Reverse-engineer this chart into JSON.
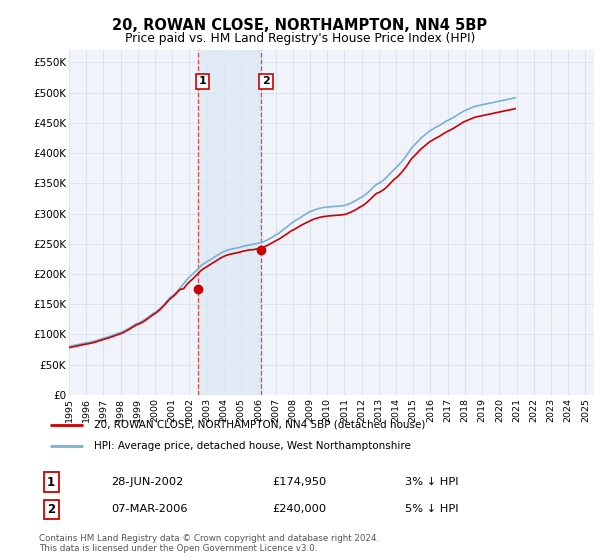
{
  "title": "20, ROWAN CLOSE, NORTHAMPTON, NN4 5BP",
  "subtitle": "Price paid vs. HM Land Registry's House Price Index (HPI)",
  "ylabel_ticks": [
    "£0",
    "£50K",
    "£100K",
    "£150K",
    "£200K",
    "£250K",
    "£300K",
    "£350K",
    "£400K",
    "£450K",
    "£500K",
    "£550K"
  ],
  "ytick_values": [
    0,
    50000,
    100000,
    150000,
    200000,
    250000,
    300000,
    350000,
    400000,
    450000,
    500000,
    550000
  ],
  "ylim": [
    0,
    570000
  ],
  "xlim_start": 1995.0,
  "xlim_end": 2025.5,
  "bg_color": "#ffffff",
  "plot_bg": "#f0f4fa",
  "grid_color": "#d8e0ec",
  "red_color": "#cc0000",
  "blue_color": "#7ab0d4",
  "transaction1_x": 2002.5,
  "transaction1_y": 174950,
  "transaction2_x": 2006.17,
  "transaction2_y": 240000,
  "shade_color": "#dce8f5",
  "shade_alpha": 0.7,
  "legend_line1": "20, ROWAN CLOSE, NORTHAMPTON, NN4 5BP (detached house)",
  "legend_line2": "HPI: Average price, detached house, West Northamptonshire",
  "table_entries": [
    {
      "num": "1",
      "date": "28-JUN-2002",
      "price": "£174,950",
      "hpi": "3% ↓ HPI"
    },
    {
      "num": "2",
      "date": "07-MAR-2006",
      "price": "£240,000",
      "hpi": "5% ↓ HPI"
    }
  ],
  "footer": "Contains HM Land Registry data © Crown copyright and database right 2024.\nThis data is licensed under the Open Government Licence v3.0.",
  "hpi_monthly": {
    "start_year": 1995,
    "start_month": 1,
    "values": [
      80000,
      80500,
      81000,
      81500,
      82000,
      82500,
      83000,
      83500,
      84000,
      84500,
      85000,
      85500,
      86000,
      86200,
      86800,
      87200,
      87800,
      88400,
      89000,
      89700,
      90400,
      91200,
      92100,
      92800,
      93500,
      94100,
      94800,
      95600,
      96400,
      97200,
      98100,
      99000,
      99900,
      100700,
      101500,
      102200,
      103000,
      104000,
      105200,
      106500,
      107800,
      109000,
      110500,
      112000,
      113500,
      115000,
      116500,
      117800,
      118500,
      119500,
      120500,
      121800,
      123200,
      124800,
      126500,
      128200,
      130000,
      131800,
      133500,
      135200,
      136500,
      138200,
      140000,
      142000,
      144200,
      146500,
      149000,
      151800,
      154500,
      157200,
      159800,
      162000,
      163500,
      165500,
      167800,
      170200,
      172800,
      175500,
      178200,
      181000,
      184000,
      187000,
      190000,
      193000,
      195000,
      197000,
      199200,
      201500,
      203800,
      206200,
      208800,
      211200,
      213500,
      215500,
      217000,
      218500,
      220000,
      221500,
      223000,
      224500,
      226000,
      227500,
      229000,
      230500,
      232000,
      233500,
      234800,
      236000,
      237200,
      238200,
      239000,
      239800,
      240500,
      241000,
      241500,
      242000,
      242500,
      243000,
      243500,
      244000,
      244800,
      245500,
      246000,
      246500,
      247000,
      247500,
      248000,
      248500,
      249000,
      249500,
      250000,
      250500,
      251000,
      251500,
      252000,
      252800,
      253800,
      254800,
      256000,
      257200,
      258500,
      259800,
      261200,
      262800,
      264000,
      265500,
      267000,
      268800,
      270500,
      272200,
      274000,
      276000,
      278000,
      280000,
      282000,
      284000,
      285500,
      287000,
      288500,
      290000,
      291500,
      293000,
      294500,
      296000,
      297500,
      299000,
      300500,
      302000,
      303000,
      304000,
      305000,
      306000,
      306800,
      307500,
      308200,
      308800,
      309300,
      309800,
      310200,
      310500,
      310800,
      311000,
      311200,
      311400,
      311600,
      311800,
      312000,
      312200,
      312400,
      312600,
      312800,
      313000,
      313500,
      314000,
      314800,
      315800,
      316800,
      317800,
      319000,
      320200,
      321500,
      323000,
      324500,
      326000,
      327000,
      328500,
      330200,
      332000,
      334000,
      336200,
      338500,
      340800,
      343200,
      345500,
      347500,
      349000,
      350000,
      351500,
      353000,
      354800,
      356800,
      359000,
      361500,
      364000,
      366500,
      369000,
      371500,
      374000,
      376000,
      378500,
      381000,
      383500,
      386000,
      389000,
      392000,
      395000,
      398500,
      402000,
      405500,
      409000,
      411500,
      414000,
      416500,
      419000,
      421500,
      424000,
      426000,
      428000,
      430000,
      432000,
      434000,
      436000,
      437500,
      439000,
      440500,
      441800,
      443000,
      444200,
      445500,
      447000,
      448500,
      450000,
      451500,
      453000,
      454000,
      455200,
      456500,
      457800,
      459000,
      460500,
      462000,
      463500,
      465000,
      466500,
      468000,
      469500,
      470500,
      471500,
      472500,
      473500,
      474500,
      475500,
      476500,
      477500,
      478000,
      478500,
      479000,
      479500,
      480000,
      480500,
      481000,
      481500,
      482000,
      482500,
      483000,
      483500,
      484000,
      484500,
      485000,
      485500,
      486000,
      486500,
      487000,
      487500,
      488000,
      488500,
      489000,
      489500,
      490000,
      490500,
      491000,
      491500
    ]
  },
  "price_monthly": {
    "start_year": 1995,
    "start_month": 1,
    "values": [
      78000,
      78500,
      79000,
      79500,
      80000,
      80500,
      81000,
      81500,
      82000,
      82500,
      83000,
      83500,
      84000,
      84200,
      84800,
      85200,
      85800,
      86400,
      87000,
      87700,
      88400,
      89200,
      90100,
      90800,
      91500,
      92100,
      92800,
      93600,
      94400,
      95200,
      96100,
      97000,
      97900,
      98700,
      99500,
      100200,
      101000,
      102000,
      103200,
      104500,
      105800,
      107000,
      108500,
      110000,
      111500,
      113000,
      114500,
      115800,
      116500,
      117500,
      118500,
      119800,
      121200,
      122800,
      124500,
      126200,
      128000,
      129800,
      131500,
      133200,
      134500,
      136200,
      138000,
      140000,
      142200,
      144500,
      147000,
      149800,
      152500,
      155200,
      157800,
      160000,
      161500,
      163500,
      165800,
      168200,
      170800,
      173500,
      174950,
      174950,
      176000,
      179000,
      182000,
      185000,
      187000,
      189000,
      191200,
      193500,
      195800,
      198200,
      200800,
      203200,
      205500,
      207500,
      209000,
      210500,
      212000,
      213500,
      215000,
      216500,
      218000,
      219500,
      221000,
      222500,
      224000,
      225500,
      226800,
      228000,
      229200,
      230200,
      231000,
      231800,
      232500,
      233000,
      233500,
      234000,
      234500,
      235000,
      235500,
      236000,
      236800,
      237500,
      238000,
      238500,
      239000,
      239500,
      240000,
      240000,
      240000,
      240500,
      241000,
      241500,
      242000,
      242500,
      243000,
      243800,
      244800,
      245800,
      247000,
      248200,
      249500,
      250800,
      252200,
      253800,
      254800,
      256000,
      257200,
      258800,
      260200,
      261800,
      263200,
      264800,
      266500,
      268000,
      269800,
      271500,
      272500,
      273800,
      275000,
      276500,
      278000,
      279500,
      280800,
      282000,
      283200,
      284500,
      285800,
      287000,
      288000,
      289000,
      290000,
      291000,
      291800,
      292500,
      293200,
      293800,
      294300,
      294800,
      295200,
      295500,
      295800,
      296000,
      296200,
      296400,
      296600,
      296800,
      297000,
      297200,
      297400,
      297600,
      297800,
      298000,
      298500,
      299000,
      299800,
      300800,
      301800,
      302800,
      304000,
      305200,
      306500,
      308000,
      309500,
      311000,
      312000,
      313500,
      315200,
      317000,
      319000,
      321200,
      323500,
      325800,
      328200,
      330500,
      332500,
      334000,
      334800,
      336000,
      337500,
      339000,
      340800,
      342800,
      345000,
      347500,
      350000,
      352500,
      355000,
      357500,
      359000,
      361000,
      363500,
      366000,
      368500,
      371500,
      374500,
      377500,
      381000,
      384500,
      388000,
      391500,
      393500,
      396000,
      398500,
      401000,
      403500,
      406000,
      408000,
      410000,
      412000,
      414000,
      416000,
      418000,
      419500,
      421000,
      422500,
      423800,
      425000,
      426200,
      427500,
      429000,
      430500,
      432000,
      433500,
      435000,
      436000,
      437200,
      438500,
      439800,
      441000,
      442500,
      444000,
      445500,
      447000,
      448500,
      450000,
      451500,
      452500,
      453500,
      454500,
      455500,
      456500,
      457500,
      458500,
      459500,
      460000,
      460500,
      461000,
      461500,
      462000,
      462500,
      463000,
      463500,
      464000,
      464500,
      465000,
      465500,
      466000,
      466500,
      467000,
      467500,
      468000,
      468500,
      469000,
      469500,
      470000,
      470500,
      471000,
      471500,
      472000,
      472500,
      473000,
      473500
    ]
  }
}
